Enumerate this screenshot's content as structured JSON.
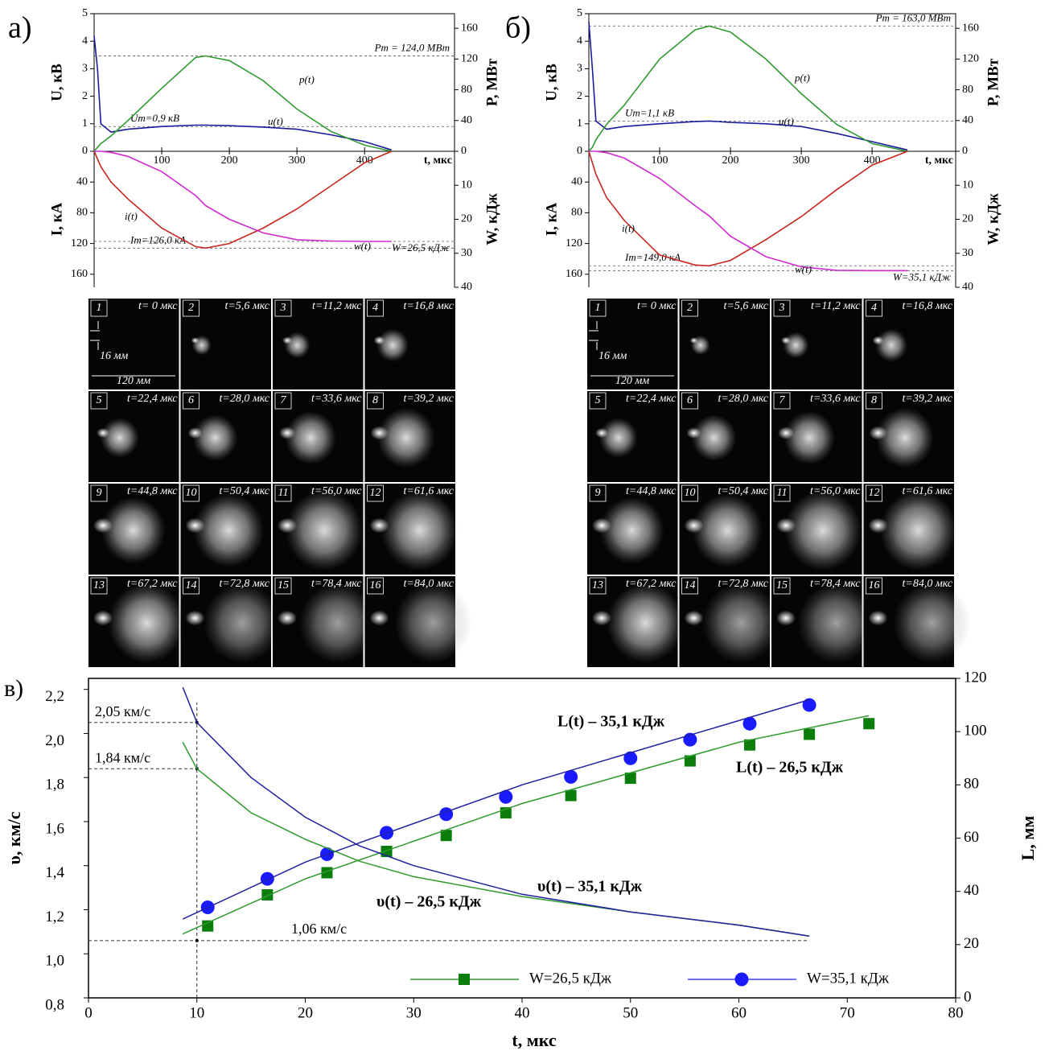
{
  "chart_data": [
    {
      "type": "line",
      "panel_label": "а)",
      "x": [
        0,
        5,
        10,
        25,
        50,
        100,
        150,
        165,
        200,
        250,
        300,
        350,
        400,
        440
      ],
      "xlim": [
        0,
        533
      ],
      "xticks": [
        100,
        200,
        300,
        400
      ],
      "xlabel": "t, мкс",
      "ylim": [
        0,
        5
      ],
      "yticks": [
        0,
        1,
        2,
        3,
        4,
        5
      ],
      "ylabel": "U, кВ",
      "y2lim": [
        0,
        179
      ],
      "y2ticks": [
        0,
        40,
        80,
        120,
        160
      ],
      "y2label": "P, МВт",
      "series": [
        {
          "name": "u(t)",
          "color": "#1b1b9e",
          "values": [
            4.2,
            3.0,
            1.0,
            0.7,
            0.8,
            0.9,
            0.95,
            0.95,
            0.93,
            0.88,
            0.8,
            0.6,
            0.35,
            0.05
          ]
        },
        {
          "name": "p(t)",
          "color": "#2f9a2f",
          "axis": "y2",
          "values": [
            0,
            5,
            10,
            20,
            40,
            82,
            122,
            124,
            118,
            92,
            55,
            26,
            8,
            0
          ]
        }
      ],
      "peaks": [
        {
          "value": 124,
          "label": "Pm = 124,0 МВт",
          "axis": "y2"
        },
        {
          "value": 0.9,
          "label": "Um=0,9 кВ"
        }
      ]
    },
    {
      "type": "line",
      "x": [
        0,
        5,
        10,
        25,
        50,
        100,
        150,
        165,
        200,
        250,
        300,
        350,
        400,
        440
      ],
      "xlim": [
        0,
        533
      ],
      "ylim": [
        0,
        177
      ],
      "y_inverted": true,
      "yticks": [
        40,
        80,
        120,
        160
      ],
      "ylabel": "I, кА",
      "y2lim": [
        0,
        40
      ],
      "y2ticks": [
        10,
        20,
        30,
        40
      ],
      "y2label": "W, кДж",
      "series": [
        {
          "name": "i(t)",
          "color": "#c8261f",
          "values": [
            0,
            10,
            20,
            40,
            62,
            100,
            124,
            126,
            120,
            100,
            75,
            45,
            15,
            0
          ]
        },
        {
          "name": "w(t)",
          "color": "#d02ad0",
          "axis": "y2",
          "values": [
            0,
            0,
            0,
            0.3,
            1.5,
            6,
            13,
            16,
            20,
            24,
            26,
            26.4,
            26.5,
            26.5
          ]
        }
      ],
      "peaks": [
        {
          "value": 126,
          "label": "Im=126,0 кА"
        },
        {
          "value": 26.5,
          "label": "W=26,5 кДж",
          "axis": "y2"
        }
      ]
    },
    {
      "type": "line",
      "panel_label": "б)",
      "x": [
        0,
        5,
        10,
        25,
        50,
        100,
        150,
        170,
        200,
        250,
        300,
        350,
        400,
        450
      ],
      "xlim": [
        0,
        518
      ],
      "xticks": [
        100,
        200,
        300,
        400
      ],
      "xlabel": "t, мкс",
      "ylim": [
        0,
        5
      ],
      "yticks": [
        0,
        1,
        2,
        3,
        4,
        5
      ],
      "ylabel": "U, кВ",
      "y2lim": [
        0,
        179
      ],
      "y2ticks": [
        0,
        40,
        80,
        120,
        160
      ],
      "y2label": "P, МВт",
      "series": [
        {
          "name": "u(t)",
          "color": "#1b1b9e",
          "values": [
            4.7,
            3.0,
            1.1,
            0.8,
            0.9,
            1.0,
            1.08,
            1.1,
            1.05,
            1.0,
            0.9,
            0.65,
            0.35,
            0.05
          ]
        },
        {
          "name": "p(t)",
          "color": "#2f9a2f",
          "axis": "y2",
          "values": [
            0,
            5,
            15,
            35,
            60,
            120,
            158,
            163,
            155,
            120,
            75,
            35,
            10,
            0
          ]
        }
      ],
      "peaks": [
        {
          "value": 163,
          "label": "Pm = 163,0 МВт",
          "axis": "y2"
        },
        {
          "value": 1.1,
          "label": "Um=1,1 кВ"
        }
      ]
    },
    {
      "type": "line",
      "x": [
        0,
        5,
        10,
        25,
        50,
        100,
        150,
        170,
        200,
        250,
        300,
        350,
        400,
        450
      ],
      "xlim": [
        0,
        518
      ],
      "ylim": [
        0,
        177
      ],
      "y_inverted": true,
      "yticks": [
        40,
        80,
        120,
        160
      ],
      "ylabel": "I, кА",
      "y2lim": [
        0,
        40
      ],
      "y2ticks": [
        10,
        20,
        30,
        40
      ],
      "y2label": "W, кДж",
      "series": [
        {
          "name": "i(t)",
          "color": "#c8261f",
          "values": [
            0,
            15,
            30,
            60,
            90,
            135,
            148,
            149,
            142,
            115,
            85,
            50,
            18,
            0
          ]
        },
        {
          "name": "w(t)",
          "color": "#d02ad0",
          "axis": "y2",
          "values": [
            0,
            0,
            0,
            0.4,
            2,
            8,
            16,
            19,
            25,
            31,
            34,
            35,
            35.1,
            35.1
          ]
        }
      ],
      "peaks": [
        {
          "value": 149,
          "label": "Im=149,0 кА"
        },
        {
          "value": 35.1,
          "label": "W=35,1 кДж",
          "axis": "y2"
        }
      ]
    },
    {
      "type": "scatter",
      "panel_label": "в)",
      "xlim": [
        0,
        80
      ],
      "xticks": [
        0,
        10,
        20,
        30,
        40,
        50,
        60,
        70,
        80
      ],
      "xlabel": "t, мкс",
      "ylim": [
        0.8,
        2.25
      ],
      "yticks": [
        {
          "value": 0.8,
          "label": "0,8"
        },
        {
          "value": 1.0,
          "label": "1,0"
        },
        {
          "value": 1.2,
          "label": "1,2"
        },
        {
          "value": 1.4,
          "label": "1,4"
        },
        {
          "value": 1.6,
          "label": "1,6"
        },
        {
          "value": 1.8,
          "label": "1,8"
        },
        {
          "value": 2.0,
          "label": "2,0"
        },
        {
          "value": 2.2,
          "label": "2,2"
        }
      ],
      "ylabel": "υ, км/с",
      "y2lim": [
        0,
        120
      ],
      "y2ticks": [
        0,
        20,
        40,
        60,
        80,
        100,
        120
      ],
      "y2label": "L, мм",
      "legend": "lower right",
      "series": [
        {
          "name": "W=26,5 кДж",
          "color": "#0a7d0a",
          "marker": "square",
          "axis": "y2",
          "x": [
            11,
            16.5,
            22,
            27.5,
            33,
            38.5,
            44.5,
            50,
            55.5,
            61,
            66.5,
            72
          ],
          "values": [
            27,
            38.7,
            47,
            55,
            61,
            69.5,
            76,
            82.5,
            89,
            95,
            99,
            103
          ]
        },
        {
          "name": "W=35,1 кДж",
          "color": "#1a1aff",
          "marker": "circle",
          "axis": "y2",
          "x": [
            11,
            16.5,
            22,
            27.5,
            33,
            38.5,
            44.5,
            50,
            55.5,
            61,
            66.5
          ],
          "values": [
            34,
            44.7,
            54,
            62,
            69,
            75.5,
            83,
            90,
            97,
            103,
            110
          ]
        },
        {
          "color": "#2e9a2e",
          "axis": "y2",
          "x": [
            8.7,
            20,
            40,
            60,
            72
          ],
          "values": [
            24,
            44.7,
            73,
            96,
            106
          ]
        },
        {
          "color": "#2020a0",
          "axis": "y2",
          "x": [
            8.7,
            20,
            40,
            66.5
          ],
          "values": [
            29.6,
            51,
            80,
            112
          ]
        },
        {
          "color": "#2e9a2e",
          "x": [
            8.7,
            10,
            15,
            20,
            25,
            30,
            40,
            50,
            60,
            66.5
          ],
          "values": [
            1.96,
            1.84,
            1.64,
            1.52,
            1.42,
            1.35,
            1.26,
            1.19,
            1.13,
            1.08
          ]
        },
        {
          "color": "#2020a0",
          "x": [
            8.7,
            10,
            15,
            20,
            25,
            30,
            40,
            50,
            60,
            66.5
          ],
          "values": [
            2.21,
            2.05,
            1.8,
            1.62,
            1.49,
            1.4,
            1.27,
            1.19,
            1.13,
            1.08
          ]
        }
      ],
      "hlines": [
        {
          "value": 2.05,
          "label": "2,05 км/с"
        },
        {
          "value": 1.84,
          "label": "1,84 км/с"
        },
        {
          "value": 1.06,
          "label": "1,06 км/с"
        }
      ],
      "vline_x": 10,
      "annotations": [
        "L(t)  – 35,1 кДж",
        "L(t)  – 26,5 кДж",
        "υ(t) – 35,1 кДж",
        "υ(t) – 26,5 кДж"
      ]
    }
  ],
  "frames": {
    "numbers": [
      "1",
      "2",
      "3",
      "4",
      "5",
      "6",
      "7",
      "8",
      "9",
      "10",
      "11",
      "12",
      "13",
      "14",
      "15",
      "16"
    ],
    "times": [
      "t= 0 мкс",
      "t=5,6 мкс",
      "t=11,2 мкс",
      "t=16,8 мкс",
      "t=22,4 мкс",
      "t=28,0 мкс",
      "t=33,6 мкс",
      "t=39,2 мкс",
      "t=44,8 мкс",
      "t=50,4 мкс",
      "t=56,0 мкс",
      "t=61,6 мкс",
      "t=67,2 мкс",
      "t=72,8 мкс",
      "t=78,4 мкс",
      "t=84,0 мкс"
    ],
    "scale_labels": [
      "16 мм",
      "120 мм"
    ]
  }
}
